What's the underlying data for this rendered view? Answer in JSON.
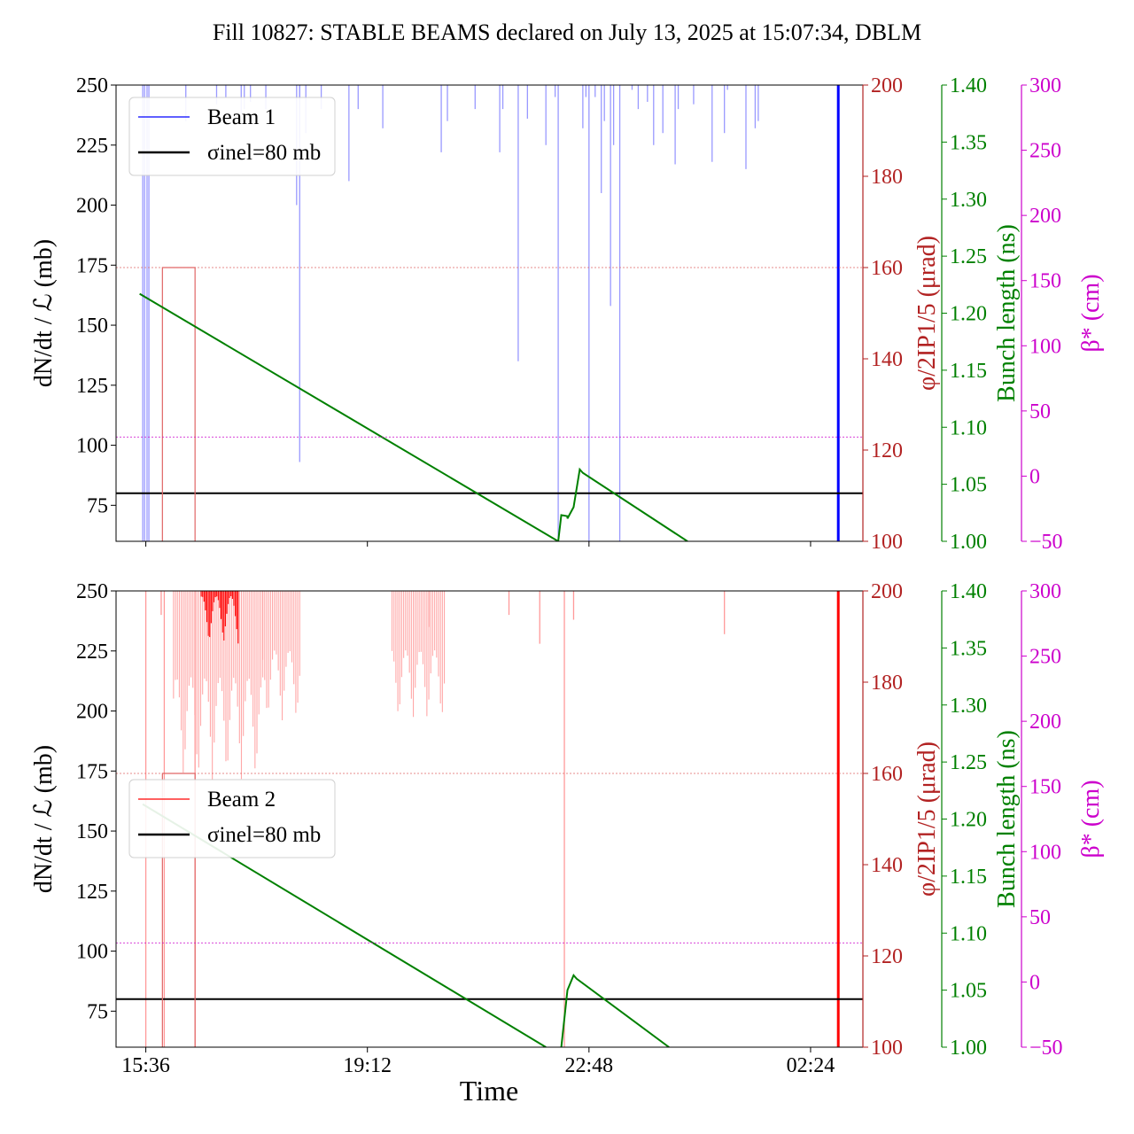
{
  "page": {
    "title": "Fill 10827: STABLE BEAMS declared on July 13, 2025 at 15:07:34, DBLM",
    "xlabel": "Time"
  },
  "colors": {
    "beam1": "#0000ff",
    "beam1_light": "#9999ff",
    "beam2": "#ff0000",
    "beam2_light": "#ff9999",
    "sigma_line": "#000000",
    "crossing_angle": "#e06666",
    "crossing_axis": "#b22222",
    "bunch_length": "#008000",
    "beta_star": "#cc00cc"
  },
  "chart_data": [
    {
      "type": "line",
      "panel": "top",
      "title": "",
      "xlabel": "",
      "ylabel": "dN/dt / ℒ (mb)",
      "ylim": [
        60,
        250
      ],
      "yticks": [
        "75",
        "100",
        "125",
        "150",
        "175",
        "200",
        "225",
        "250"
      ],
      "xlim": [
        "15:07",
        "03:15"
      ],
      "xticks": [
        "15:36",
        "19:12",
        "22:48",
        "02:24"
      ],
      "legend": {
        "position": "top-left",
        "entries": [
          "Beam 1",
          "σinel=80 mb"
        ]
      },
      "right_axes": [
        {
          "label": "φ/2IP1/5 (μrad)",
          "ylim": [
            100,
            200
          ],
          "ticks": [
            "100",
            "120",
            "140",
            "160",
            "180",
            "200"
          ]
        },
        {
          "label": "Bunch length (ns)",
          "ylim": [
            1.0,
            1.4
          ],
          "ticks": [
            "1.00",
            "1.05",
            "1.10",
            "1.15",
            "1.20",
            "1.25",
            "1.30",
            "1.35",
            "1.40"
          ]
        },
        {
          "label": "β* (cm)",
          "ylim": [
            -50,
            300
          ],
          "ticks": [
            "−50",
            "0",
            "50",
            "100",
            "150",
            "200",
            "250",
            "300"
          ]
        }
      ],
      "series": [
        {
          "name": "Beam 1",
          "axis": "left",
          "style": "spikes",
          "spikes": [
            [
              15.55,
              60,
              250
            ],
            [
              15.58,
              60,
              250
            ],
            [
              15.62,
              60,
              250
            ],
            [
              15.65,
              60,
              250
            ],
            [
              16.25,
              235,
              250
            ],
            [
              16.75,
              242,
              250
            ],
            [
              16.9,
              245,
              250
            ],
            [
              17.15,
              238,
              250
            ],
            [
              17.2,
              240,
              250
            ],
            [
              17.3,
              243,
              250
            ],
            [
              17.55,
              240,
              250
            ],
            [
              18.05,
              200,
              250
            ],
            [
              18.1,
              93,
              250
            ],
            [
              18.1,
              228,
              250
            ],
            [
              18.2,
              230,
              250
            ],
            [
              18.45,
              240,
              250
            ],
            [
              18.9,
              210,
              250
            ],
            [
              19.05,
              240,
              250
            ],
            [
              19.45,
              232,
              250
            ],
            [
              20.4,
              222,
              250
            ],
            [
              20.5,
              235,
              250
            ],
            [
              20.95,
              240,
              250
            ],
            [
              21.15,
              250,
              250
            ],
            [
              21.35,
              222,
              250
            ],
            [
              21.4,
              240,
              250
            ],
            [
              21.65,
              135,
              250
            ],
            [
              21.8,
              236,
              250
            ],
            [
              22.1,
              225,
              250
            ],
            [
              22.25,
              245,
              250
            ],
            [
              22.3,
              60,
              250
            ],
            [
              22.7,
              232,
              250
            ],
            [
              22.75,
              245,
              250
            ],
            [
              22.8,
              60,
              250
            ],
            [
              22.9,
              245,
              250
            ],
            [
              23.0,
              205,
              250
            ],
            [
              23.05,
              235,
              250
            ],
            [
              23.15,
              158,
              250
            ],
            [
              23.2,
              225,
              250
            ],
            [
              23.3,
              60,
              250
            ],
            [
              23.5,
              248,
              250
            ],
            [
              23.6,
              240,
              250
            ],
            [
              23.75,
              243,
              250
            ],
            [
              23.85,
              225,
              250
            ],
            [
              24.0,
              230,
              250
            ],
            [
              24.2,
              217,
              250
            ],
            [
              24.25,
              240,
              250
            ],
            [
              24.5,
              242,
              250
            ],
            [
              24.8,
              218,
              250
            ],
            [
              25.0,
              230,
              250
            ],
            [
              25.05,
              248,
              250
            ],
            [
              25.35,
              215,
              250
            ],
            [
              25.5,
              232,
              250
            ],
            [
              25.55,
              235,
              250
            ]
          ]
        },
        {
          "name": "Beam 1 (end)",
          "axis": "left",
          "style": "bar",
          "x": 26.85,
          "y": [
            60,
            250
          ]
        },
        {
          "name": "σinel=80 mb",
          "axis": "left",
          "style": "hline",
          "y": 80
        },
        {
          "name": "Crossing angle",
          "axis": "right1",
          "style": "step",
          "points": [
            [
              15.87,
              100
            ],
            [
              15.87,
              160
            ],
            [
              16.4,
              160
            ],
            [
              16.4,
              100
            ]
          ],
          "ref": 160
        },
        {
          "name": "Bunch length",
          "axis": "right2",
          "style": "line",
          "points": [
            [
              15.5,
              1.217
            ],
            [
              22.3,
              1.0
            ]
          ]
        },
        {
          "name": "Bunch length (after refill)",
          "axis": "right2",
          "style": "line",
          "points": [
            [
              22.3,
              1.0
            ],
            [
              22.35,
              1.023
            ],
            [
              22.45,
              1.022
            ],
            [
              22.45,
              1.02
            ],
            [
              22.55,
              1.03
            ],
            [
              22.65,
              1.063
            ],
            [
              22.7,
              1.06
            ],
            [
              24.4,
              1.0
            ]
          ]
        },
        {
          "name": "beta*",
          "axis": "right3",
          "style": "hline",
          "y": 30
        }
      ]
    },
    {
      "type": "line",
      "panel": "bottom",
      "title": "",
      "xlabel": "Time",
      "ylabel": "dN/dt / ℒ (mb)",
      "ylim": [
        60,
        250
      ],
      "yticks": [
        "75",
        "100",
        "125",
        "150",
        "175",
        "200",
        "225",
        "250"
      ],
      "xlim": [
        "15:07",
        "03:15"
      ],
      "xticks": [
        "15:36",
        "19:12",
        "22:48",
        "02:24"
      ],
      "legend": {
        "position": "center-left",
        "entries": [
          "Beam 2",
          "σinel=80 mb"
        ]
      },
      "right_axes": [
        {
          "label": "φ/2IP1/5 (μrad)",
          "ylim": [
            100,
            200
          ],
          "ticks": [
            "100",
            "120",
            "140",
            "160",
            "180",
            "200"
          ]
        },
        {
          "label": "Bunch length (ns)",
          "ylim": [
            1.0,
            1.4
          ],
          "ticks": [
            "1.00",
            "1.05",
            "1.10",
            "1.15",
            "1.20",
            "1.25",
            "1.30",
            "1.35",
            "1.40"
          ]
        },
        {
          "label": "β* (cm)",
          "ylim": [
            -50,
            300
          ],
          "ticks": [
            "−50",
            "0",
            "50",
            "100",
            "150",
            "200",
            "250",
            "300"
          ]
        }
      ],
      "series": [
        {
          "name": "Beam 2",
          "axis": "left",
          "style": "spikes",
          "spikes": [
            [
              15.6,
              60,
              250
            ],
            [
              15.9,
              60,
              250
            ],
            [
              16.4,
              60,
              250
            ],
            [
              22.4,
              60,
              250
            ],
            [
              22.55,
              238,
              250
            ],
            [
              25.0,
              232,
              250
            ],
            [
              20.2,
              235,
              250
            ],
            [
              21.5,
              240,
              250
            ],
            [
              22.0,
              228,
              250
            ],
            [
              15.85,
              240,
              250
            ]
          ]
        },
        {
          "name": "Beam 2 (dense)",
          "axis": "left",
          "style": "band",
          "bands": [
            {
              "x": [
                16.05,
                17.5
              ],
              "ymin": 170,
              "ymax": 250,
              "dark_x": [
                16.5,
                17.1
              ],
              "dark_ymin": 228
            },
            {
              "x": [
                17.5,
                18.1
              ],
              "ymin": 195,
              "ymax": 250
            },
            {
              "x": [
                19.6,
                20.45
              ],
              "ymin": 195,
              "ymax": 250
            }
          ]
        },
        {
          "name": "Beam 2 (end)",
          "axis": "left",
          "style": "bar",
          "x": 26.85,
          "y": [
            60,
            250
          ]
        },
        {
          "name": "σinel=80 mb",
          "axis": "left",
          "style": "hline",
          "y": 80
        },
        {
          "name": "Crossing angle",
          "axis": "right1",
          "style": "step",
          "points": [
            [
              15.87,
              100
            ],
            [
              15.87,
              160
            ],
            [
              16.4,
              160
            ],
            [
              16.4,
              100
            ]
          ],
          "ref": 160
        },
        {
          "name": "Bunch length",
          "axis": "right2",
          "style": "line",
          "points": [
            [
              15.55,
              1.213
            ],
            [
              22.1,
              1.0
            ]
          ]
        },
        {
          "name": "Bunch length (after refill)",
          "axis": "right2",
          "style": "line",
          "points": [
            [
              22.35,
              1.0
            ],
            [
              22.45,
              1.05
            ],
            [
              22.55,
              1.063
            ],
            [
              22.6,
              1.06
            ],
            [
              24.1,
              1.0
            ]
          ]
        },
        {
          "name": "beta*",
          "axis": "right3",
          "style": "hline",
          "y": 30
        }
      ]
    }
  ]
}
